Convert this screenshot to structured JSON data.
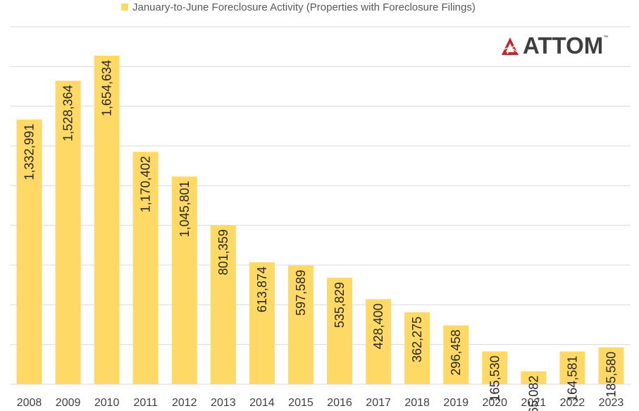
{
  "legend": {
    "label": "January-to-June Foreclosure Activity (Properties with Foreclosure Filings)"
  },
  "logo": {
    "text": "ATTOM",
    "tm": "™"
  },
  "colors": {
    "bar": "#FFD966",
    "grid": "#D9D9D9",
    "tick_label": "#404040",
    "bar_label": "#262626",
    "logo_red": "#C1272D"
  },
  "chart_data": {
    "type": "bar",
    "categories": [
      "2008",
      "2009",
      "2010",
      "2011",
      "2012",
      "2013",
      "2014",
      "2015",
      "2016",
      "2017",
      "2018",
      "2019",
      "2020",
      "2021",
      "2022",
      "2023"
    ],
    "series": [
      {
        "name": "January-to-June Foreclosure Activity (Properties with Foreclosure Filings)",
        "values": [
          1332991,
          1528364,
          1654634,
          1170402,
          1045801,
          801359,
          613874,
          597589,
          535829,
          428400,
          362275,
          296458,
          165530,
          65082,
          164581,
          185580
        ],
        "labels": [
          "1,332,991",
          "1,528,364",
          "1,654,634",
          "1,170,402",
          "1,045,801",
          "801,359",
          "613,874",
          "597,589",
          "535,829",
          "428,400",
          "362,275",
          "296,458",
          "165,530",
          "65,082",
          "164,581",
          "185,580"
        ]
      }
    ],
    "ylim": [
      0,
      1800000
    ],
    "grid": true,
    "legend_position": "top",
    "title": "",
    "xlabel": "",
    "ylabel": ""
  }
}
